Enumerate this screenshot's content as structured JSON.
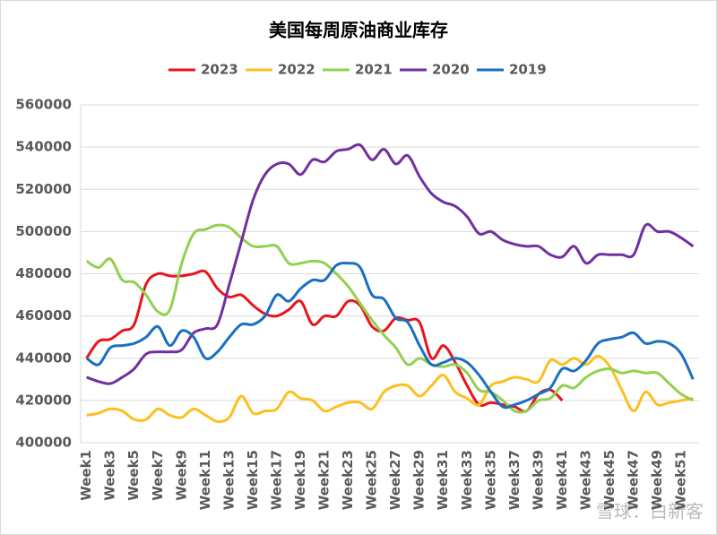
{
  "chart_data": {
    "type": "line",
    "title": "美国每周原油商业库存",
    "categories": [
      "Week1",
      null,
      "Week3",
      null,
      "Week5",
      null,
      "Week7",
      null,
      "Week9",
      null,
      "Week11",
      null,
      "Week13",
      null,
      "Week15",
      null,
      "Week17",
      null,
      "Week19",
      null,
      "Week21",
      null,
      "Week23",
      null,
      "Week25",
      null,
      "Week27",
      null,
      "Week29",
      null,
      "Week31",
      null,
      "Week33",
      null,
      "Week35",
      null,
      "Week37",
      null,
      "Week39",
      null,
      "Week41",
      null,
      "Week43",
      null,
      "Week45",
      null,
      "Week47",
      null,
      "Week49",
      null,
      "Week51",
      null
    ],
    "series": [
      {
        "name": "2023",
        "color": "#e8141b",
        "values": [
          440000,
          448000,
          449000,
          453000,
          456000,
          475000,
          480000,
          479000,
          479000,
          480000,
          481000,
          473000,
          469000,
          470000,
          465000,
          461000,
          460000,
          463000,
          467000,
          456000,
          460000,
          460000,
          467000,
          465000,
          455000,
          453000,
          459000,
          458000,
          457000,
          440000,
          446000,
          438000,
          427000,
          418000,
          419000,
          418000,
          417000,
          415000,
          423000,
          425000,
          420000,
          null,
          null,
          null,
          null,
          null,
          null,
          null,
          null,
          null,
          null,
          null
        ]
      },
      {
        "name": "2022",
        "color": "#fbc020",
        "values": [
          413000,
          414000,
          416000,
          415000,
          411000,
          411000,
          416000,
          413000,
          412000,
          416000,
          413000,
          410000,
          412000,
          422000,
          414000,
          415000,
          416000,
          424000,
          421000,
          420000,
          415000,
          417000,
          419000,
          419000,
          416000,
          424000,
          427000,
          427000,
          422000,
          427000,
          432000,
          424000,
          421000,
          418000,
          427000,
          429000,
          431000,
          430000,
          429000,
          439000,
          437000,
          440000,
          437000,
          441000,
          436000,
          425000,
          415000,
          424000,
          418000,
          419000,
          420000,
          421000
        ]
      },
      {
        "name": "2021",
        "color": "#92d050",
        "values": [
          486000,
          483000,
          487000,
          477000,
          476000,
          470000,
          462000,
          463000,
          485000,
          499000,
          501000,
          503000,
          502000,
          497000,
          493000,
          493000,
          493000,
          485000,
          485000,
          486000,
          485000,
          480000,
          474000,
          466000,
          458000,
          451000,
          445000,
          437000,
          440000,
          437000,
          436000,
          437000,
          433000,
          425000,
          424000,
          420000,
          415000,
          415000,
          420000,
          421000,
          427000,
          426000,
          431000,
          434000,
          435000,
          433000,
          434000,
          433000,
          433000,
          428000,
          423000,
          420000
        ]
      },
      {
        "name": "2020",
        "color": "#7030a0",
        "values": [
          431000,
          429000,
          428000,
          431000,
          435000,
          442000,
          443000,
          443000,
          444000,
          452000,
          454000,
          456000,
          475000,
          495000,
          515000,
          527000,
          532000,
          532000,
          527000,
          534000,
          533000,
          538000,
          539000,
          541000,
          534000,
          539000,
          532000,
          536000,
          526000,
          518000,
          514000,
          512000,
          507000,
          499000,
          500000,
          496000,
          494000,
          493000,
          493000,
          489000,
          488000,
          493000,
          485000,
          489000,
          489000,
          489000,
          489000,
          503000,
          500000,
          500000,
          497000,
          493000
        ]
      },
      {
        "name": "2019",
        "color": "#1a6fc0",
        "values": [
          440000,
          437000,
          445000,
          446000,
          447000,
          450000,
          455000,
          446000,
          453000,
          450000,
          440000,
          443000,
          450000,
          456000,
          456000,
          460000,
          470000,
          467000,
          473000,
          477000,
          477000,
          484000,
          485000,
          483000,
          470000,
          468000,
          459000,
          457000,
          446000,
          437000,
          438000,
          440000,
          438000,
          432000,
          424000,
          417000,
          418000,
          420000,
          423000,
          426000,
          435000,
          434000,
          439000,
          447000,
          449000,
          450000,
          452000,
          447000,
          448000,
          447000,
          442000,
          430000
        ]
      }
    ],
    "ylim": [
      400000,
      560000
    ],
    "yticks": [
      400000,
      420000,
      440000,
      460000,
      480000,
      500000,
      520000,
      540000,
      560000
    ],
    "grid": true,
    "legend": "top"
  },
  "watermark": "雪球：白新客"
}
